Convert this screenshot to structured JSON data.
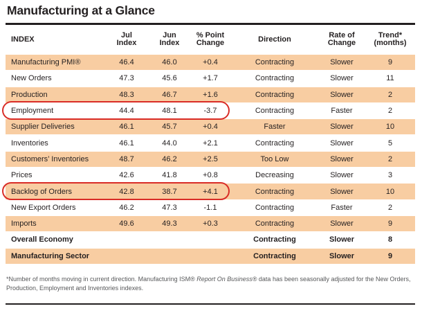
{
  "title": "Manufacturing at a Glance",
  "colors": {
    "row_stripe": "#f8cda2",
    "highlight_circle": "#d92c26",
    "rule": "#231f20",
    "footnote_text": "#57585a"
  },
  "table": {
    "headers": [
      {
        "line1": "INDEX",
        "line2": ""
      },
      {
        "line1": "Jul",
        "line2": "Index"
      },
      {
        "line1": "Jun",
        "line2": "Index"
      },
      {
        "line1": "% Point",
        "line2": "Change"
      },
      {
        "line1": "Direction",
        "line2": ""
      },
      {
        "line1": "Rate of",
        "line2": "Change"
      },
      {
        "line1": "Trend*",
        "line2": "(months)"
      }
    ],
    "rows": [
      {
        "index": "Manufacturing PMI®",
        "jul": "46.4",
        "jun": "46.0",
        "change": "+0.4",
        "direction": "Contracting",
        "rate": "Slower",
        "trend": "9",
        "highlighted": false,
        "bold": false
      },
      {
        "index": "New Orders",
        "jul": "47.3",
        "jun": "45.6",
        "change": "+1.7",
        "direction": "Contracting",
        "rate": "Slower",
        "trend": "11",
        "highlighted": false,
        "bold": false
      },
      {
        "index": "Production",
        "jul": "48.3",
        "jun": "46.7",
        "change": "+1.6",
        "direction": "Contracting",
        "rate": "Slower",
        "trend": "2",
        "highlighted": false,
        "bold": false
      },
      {
        "index": "Employment",
        "jul": "44.4",
        "jun": "48.1",
        "change": "-3.7",
        "direction": "Contracting",
        "rate": "Faster",
        "trend": "2",
        "highlighted": true,
        "bold": false
      },
      {
        "index": "Supplier Deliveries",
        "jul": "46.1",
        "jun": "45.7",
        "change": "+0.4",
        "direction": "Faster",
        "rate": "Slower",
        "trend": "10",
        "highlighted": false,
        "bold": false
      },
      {
        "index": "Inventories",
        "jul": "46.1",
        "jun": "44.0",
        "change": "+2.1",
        "direction": "Contracting",
        "rate": "Slower",
        "trend": "5",
        "highlighted": false,
        "bold": false
      },
      {
        "index": "Customers’ Inventories",
        "jul": "48.7",
        "jun": "46.2",
        "change": "+2.5",
        "direction": "Too Low",
        "rate": "Slower",
        "trend": "2",
        "highlighted": false,
        "bold": false
      },
      {
        "index": "Prices",
        "jul": "42.6",
        "jun": "41.8",
        "change": "+0.8",
        "direction": "Decreasing",
        "rate": "Slower",
        "trend": "3",
        "highlighted": false,
        "bold": false
      },
      {
        "index": "Backlog of Orders",
        "jul": "42.8",
        "jun": "38.7",
        "change": "+4.1",
        "direction": "Contracting",
        "rate": "Slower",
        "trend": "10",
        "highlighted": true,
        "bold": false
      },
      {
        "index": "New Export Orders",
        "jul": "46.2",
        "jun": "47.3",
        "change": "-1.1",
        "direction": "Contracting",
        "rate": "Faster",
        "trend": "2",
        "highlighted": false,
        "bold": false
      },
      {
        "index": "Imports",
        "jul": "49.6",
        "jun": "49.3",
        "change": "+0.3",
        "direction": "Contracting",
        "rate": "Slower",
        "trend": "9",
        "highlighted": false,
        "bold": false
      },
      {
        "index": "Overall Economy",
        "jul": "",
        "jun": "",
        "change": "",
        "direction": "Contracting",
        "rate": "Slower",
        "trend": "8",
        "highlighted": false,
        "bold": true
      },
      {
        "index": "Manufacturing Sector",
        "jul": "",
        "jun": "",
        "change": "",
        "direction": "Contracting",
        "rate": "Slower",
        "trend": "9",
        "highlighted": false,
        "bold": true
      }
    ]
  },
  "footnote": {
    "part1": "*Number of months moving in current direction. Manufacturing ISM® ",
    "italic": "Report On Business®",
    "part2": " data has been seasonally adjusted for the New Orders, Production, Employment and Inventories indexes."
  }
}
